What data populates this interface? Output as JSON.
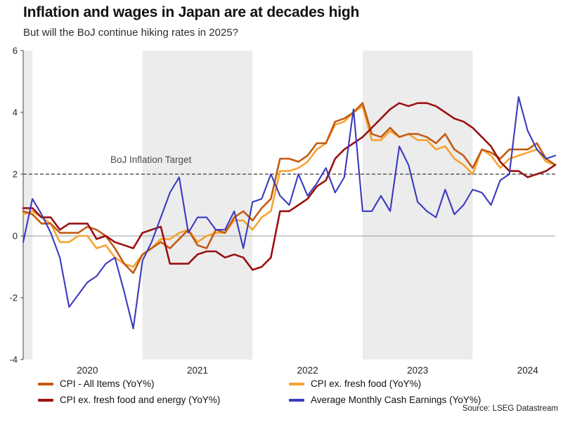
{
  "header": {
    "title": "Inflation and wages in Japan are at decades high",
    "subtitle": "But will the BoJ continue hiking rates in 2025?"
  },
  "source": "Source: LSEG Datastream",
  "annotations": {
    "target_label": "BoJ Inflation Target",
    "target_value": 2
  },
  "colors": {
    "band": "#ececec",
    "zero_line": "#9b9b9b",
    "target_line": "#5a5a5a",
    "axis": "#444444",
    "tick_text": "#222222"
  },
  "chart_data": {
    "type": "line",
    "title": "Inflation and wages in Japan are at decades high",
    "subtitle": "But will the BoJ continue hiking rates in 2025?",
    "ylim": [
      -4,
      6
    ],
    "y_ticks": [
      6,
      4,
      2,
      0,
      -2,
      -4
    ],
    "x_tick_labels": [
      "2020",
      "2021",
      "2022",
      "2023",
      "2024"
    ],
    "x_tick_month_index": [
      7,
      19,
      31,
      43,
      55
    ],
    "shaded_band_index_ranges": [
      [
        0,
        1
      ],
      [
        13,
        25
      ],
      [
        37,
        49
      ]
    ],
    "shaded_years_note": "alternating calendar-year gray bands (2019 tail, 2021, 2023)",
    "target_line_value": 2,
    "legend_position": "bottom",
    "x_months": [
      "2019-12",
      "2020-01",
      "2020-02",
      "2020-03",
      "2020-04",
      "2020-05",
      "2020-06",
      "2020-07",
      "2020-08",
      "2020-09",
      "2020-10",
      "2020-11",
      "2020-12",
      "2021-01",
      "2021-02",
      "2021-03",
      "2021-04",
      "2021-05",
      "2021-06",
      "2021-07",
      "2021-08",
      "2021-09",
      "2021-10",
      "2021-11",
      "2021-12",
      "2022-01",
      "2022-02",
      "2022-03",
      "2022-04",
      "2022-05",
      "2022-06",
      "2022-07",
      "2022-08",
      "2022-09",
      "2022-10",
      "2022-11",
      "2022-12",
      "2023-01",
      "2023-02",
      "2023-03",
      "2023-04",
      "2023-05",
      "2023-06",
      "2023-07",
      "2023-08",
      "2023-09",
      "2023-10",
      "2023-11",
      "2023-12",
      "2024-01",
      "2024-02",
      "2024-03",
      "2024-04",
      "2024-05",
      "2024-06",
      "2024-07",
      "2024-08",
      "2024-09",
      "2024-10"
    ],
    "series": [
      {
        "name": "CPI - All Items (YoY%)",
        "key": "cpi-all-items",
        "color": "#c55a11",
        "values": [
          0.8,
          0.7,
          0.4,
          0.4,
          0.1,
          0.1,
          0.1,
          0.3,
          0.2,
          0.0,
          -0.4,
          -0.9,
          -1.2,
          -0.6,
          -0.4,
          -0.2,
          -0.4,
          -0.1,
          0.2,
          -0.3,
          -0.4,
          0.2,
          0.1,
          0.6,
          0.8,
          0.5,
          0.9,
          1.2,
          2.5,
          2.5,
          2.4,
          2.6,
          3.0,
          3.0,
          3.7,
          3.8,
          4.0,
          4.3,
          3.3,
          3.2,
          3.5,
          3.2,
          3.3,
          3.3,
          3.2,
          3.0,
          3.3,
          2.8,
          2.6,
          2.2,
          2.8,
          2.7,
          2.5,
          2.8,
          2.8,
          2.8,
          3.0,
          2.5,
          2.3
        ]
      },
      {
        "name": "CPI ex. fresh food (YoY%)",
        "key": "cpi-ex-fresh-food",
        "color": "#f6a330",
        "values": [
          0.7,
          0.8,
          0.6,
          0.4,
          -0.2,
          -0.2,
          0.0,
          0.0,
          -0.4,
          -0.3,
          -0.7,
          -0.9,
          -1.0,
          -0.6,
          -0.4,
          -0.1,
          -0.1,
          0.1,
          0.2,
          -0.2,
          0.0,
          0.1,
          0.1,
          0.5,
          0.5,
          0.2,
          0.6,
          0.8,
          2.1,
          2.1,
          2.2,
          2.4,
          2.8,
          3.0,
          3.6,
          3.7,
          4.0,
          4.2,
          3.1,
          3.1,
          3.4,
          3.2,
          3.3,
          3.1,
          3.1,
          2.8,
          2.9,
          2.5,
          2.3,
          2.0,
          2.8,
          2.6,
          2.2,
          2.5,
          2.6,
          2.7,
          2.8,
          2.4,
          2.3
        ]
      },
      {
        "name": "CPI ex. fresh food and energy (YoY%)",
        "key": "cpi-ex-fresh-food-energy",
        "color": "#9a1111",
        "values": [
          0.9,
          0.9,
          0.6,
          0.6,
          0.2,
          0.4,
          0.4,
          0.4,
          -0.1,
          0.0,
          -0.2,
          -0.3,
          -0.4,
          0.1,
          0.2,
          0.3,
          -0.9,
          -0.9,
          -0.9,
          -0.6,
          -0.5,
          -0.5,
          -0.7,
          -0.6,
          -0.7,
          -1.1,
          -1.0,
          -0.7,
          0.8,
          0.8,
          1.0,
          1.2,
          1.6,
          1.8,
          2.5,
          2.8,
          3.0,
          3.2,
          3.5,
          3.8,
          4.1,
          4.3,
          4.2,
          4.3,
          4.3,
          4.2,
          4.0,
          3.8,
          3.7,
          3.5,
          3.2,
          2.9,
          2.4,
          2.1,
          2.1,
          1.9,
          2.0,
          2.1,
          2.3
        ]
      },
      {
        "name": "Average Monthly Cash Earnings (YoY%)",
        "key": "cash-earnings",
        "color": "#3a3abf",
        "values": [
          -0.2,
          1.2,
          0.7,
          0.1,
          -0.7,
          -2.3,
          -1.9,
          -1.5,
          -1.3,
          -0.9,
          -0.7,
          -1.8,
          -3.0,
          -0.8,
          -0.2,
          0.6,
          1.4,
          1.9,
          0.1,
          0.6,
          0.6,
          0.2,
          0.2,
          0.8,
          -0.4,
          1.1,
          1.2,
          2.0,
          1.3,
          1.0,
          2.0,
          1.3,
          1.7,
          2.2,
          1.4,
          1.9,
          4.1,
          0.8,
          0.8,
          1.3,
          0.8,
          2.9,
          2.3,
          1.1,
          0.8,
          0.6,
          1.5,
          0.7,
          1.0,
          1.5,
          1.4,
          1.0,
          1.8,
          2.0,
          4.5,
          3.4,
          2.8,
          2.5,
          2.6
        ]
      }
    ]
  }
}
